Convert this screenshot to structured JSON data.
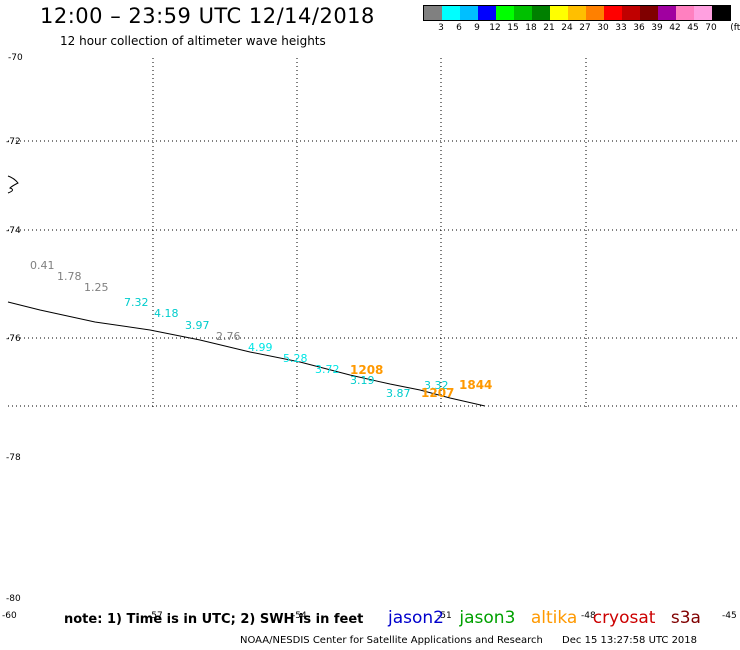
{
  "header": {
    "title": "12:00 – 23:59 UTC 12/14/2018",
    "subtitle": "12 hour collection of altimeter wave heights"
  },
  "scale": {
    "colors": [
      "#808080",
      "#00ffff",
      "#00bfff",
      "#0000ff",
      "#00ff00",
      "#00c000",
      "#008000",
      "#ffff00",
      "#ffbf00",
      "#ff8000",
      "#ff0000",
      "#c00000",
      "#800000",
      "#a000a0",
      "#ff80c0",
      "#ffa0e0",
      "#000000"
    ],
    "labels": [
      "3",
      "6",
      "9",
      "12",
      "15",
      "18",
      "21",
      "24",
      "27",
      "30",
      "33",
      "36",
      "39",
      "42",
      "45",
      "70",
      "(ft)"
    ]
  },
  "axes": {
    "lat_labels": [
      "-70",
      "-72",
      "-74",
      "-76",
      "-78",
      "-80"
    ],
    "lon_labels": [
      "-60",
      "-57",
      "-54",
      "-51",
      "-48",
      "-45"
    ]
  },
  "observations": [
    {
      "text": "0.41",
      "color": "#808080"
    },
    {
      "text": "1.78",
      "color": "#808080"
    },
    {
      "text": "1.25",
      "color": "#808080"
    },
    {
      "text": "7.32",
      "color": "#00cccc"
    },
    {
      "text": "4.18",
      "color": "#00cccc"
    },
    {
      "text": "3.97",
      "color": "#00cccc"
    },
    {
      "text": "2.76",
      "color": "#808080"
    },
    {
      "text": "4.99",
      "color": "#00e5e5"
    },
    {
      "text": "5.28",
      "color": "#00e5e5"
    },
    {
      "text": "3.72",
      "color": "#00e5e5"
    },
    {
      "text": "3.19",
      "color": "#00cccc"
    },
    {
      "text": "3.87",
      "color": "#00cccc"
    },
    {
      "text": "3.32",
      "color": "#00cccc"
    }
  ],
  "times": [
    {
      "text": "1208",
      "color": "#ff9900"
    },
    {
      "text": "1207",
      "color": "#ff9900"
    },
    {
      "text": "1844",
      "color": "#ff9900"
    }
  ],
  "note": "note:  1) Time is in UTC;  2) SWH is in feet",
  "satellites": [
    {
      "name": "jason2",
      "color": "#0000cc"
    },
    {
      "name": "jason3",
      "color": "#00a000"
    },
    {
      "name": "altika",
      "color": "#ff9900"
    },
    {
      "name": "cryosat",
      "color": "#cc0000"
    },
    {
      "name": "s3a",
      "color": "#800000"
    }
  ],
  "footer": {
    "credit": "NOAA/NESDIS Center for Satellite Applications and Research",
    "timestamp": "Dec 15 13:27:58 UTC 2018"
  }
}
